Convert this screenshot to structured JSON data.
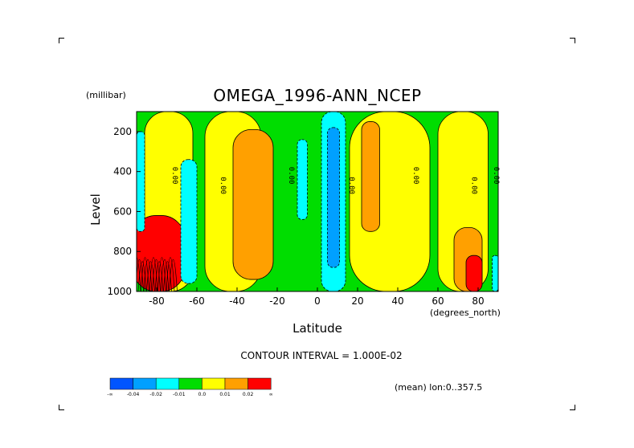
{
  "chart_data": {
    "type": "heatmap",
    "title": "OMEGA_1996-ANN_NCEP",
    "xlabel": "Latitude",
    "ylabel": "Level",
    "x_units": "(degrees_north)",
    "y_units": "(millibar)",
    "xlim": [
      -90,
      90
    ],
    "ylim": [
      1000,
      100
    ],
    "x_ticks": [
      -80,
      -60,
      -40,
      -20,
      0,
      20,
      40,
      60,
      80
    ],
    "y_ticks": [
      200,
      400,
      600,
      800,
      1000
    ],
    "contour_interval_text": "CONTOUR INTERVAL = 1.000E-02",
    "mean_text": "(mean) lon:0..357.5",
    "zero_contour_label": "0.00",
    "zero_label_latitudes": [
      -72,
      -48,
      -14,
      16,
      48,
      77,
      88
    ],
    "legend": {
      "labels": [
        "-∞",
        "-0.04",
        "-0.02",
        "-0.01",
        "0.0",
        "0.01",
        "0.02",
        "∞"
      ],
      "colors": [
        "#0055ff",
        "#00a0ff",
        "#00ffff",
        "#00dd00",
        "#ffff00",
        "#ffa000",
        "#ff0000"
      ]
    },
    "regions": [
      {
        "lat": [
          -90,
          90
        ],
        "level": [
          100,
          1000
        ],
        "value": 0.0,
        "color": "#00dd00"
      },
      {
        "lat": [
          -86,
          -62
        ],
        "level": [
          100,
          1000
        ],
        "value": 0.005,
        "color": "#ffff00"
      },
      {
        "lat": [
          -92,
          -66
        ],
        "level": [
          620,
          1000
        ],
        "value": 0.06,
        "color": "#ff0000"
      },
      {
        "lat": [
          -90,
          -86
        ],
        "level": [
          200,
          700
        ],
        "value": -0.02,
        "color": "#00ffff"
      },
      {
        "lat": [
          -68,
          -60
        ],
        "level": [
          340,
          960
        ],
        "value": -0.015,
        "color": "#00ffff"
      },
      {
        "lat": [
          -56,
          -28
        ],
        "level": [
          100,
          1000
        ],
        "value": 0.005,
        "color": "#ffff00"
      },
      {
        "lat": [
          -42,
          -22
        ],
        "level": [
          190,
          940
        ],
        "value": 0.015,
        "color": "#ffa000"
      },
      {
        "lat": [
          -10,
          -5
        ],
        "level": [
          240,
          640
        ],
        "value": -0.005,
        "color": "#00ffff"
      },
      {
        "lat": [
          2,
          14
        ],
        "level": [
          100,
          1000
        ],
        "value": -0.02,
        "color": "#00ffff"
      },
      {
        "lat": [
          5,
          11
        ],
        "level": [
          180,
          880
        ],
        "value": -0.035,
        "color": "#00a0ff"
      },
      {
        "lat": [
          16,
          56
        ],
        "level": [
          100,
          1000
        ],
        "value": 0.005,
        "color": "#ffff00"
      },
      {
        "lat": [
          22,
          31
        ],
        "level": [
          150,
          700
        ],
        "value": 0.015,
        "color": "#ffa000"
      },
      {
        "lat": [
          60,
          85
        ],
        "level": [
          100,
          1000
        ],
        "value": 0.005,
        "color": "#ffff00"
      },
      {
        "lat": [
          68,
          82
        ],
        "level": [
          680,
          1000
        ],
        "value": 0.015,
        "color": "#ffa000"
      },
      {
        "lat": [
          74,
          82
        ],
        "level": [
          820,
          1000
        ],
        "value": 0.03,
        "color": "#ff0000"
      },
      {
        "lat": [
          87,
          90
        ],
        "level": [
          820,
          1000
        ],
        "value": -0.02,
        "color": "#00ffff"
      }
    ]
  }
}
